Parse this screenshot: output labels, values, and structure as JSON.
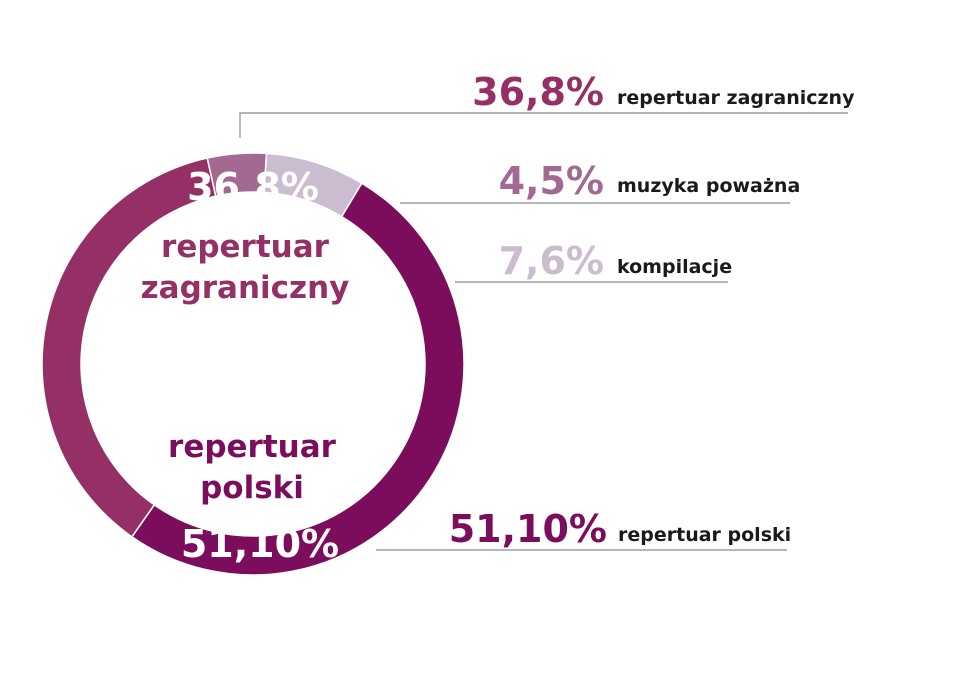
{
  "chart_data": {
    "type": "pie",
    "donut": true,
    "slices": [
      {
        "label": "repertuar zagraniczny",
        "value_text": "36,8%",
        "value": 36.8,
        "color": "#953067"
      },
      {
        "label": "muzyka poważna",
        "value_text": "4,5%",
        "value": 4.5,
        "color": "#a26a93"
      },
      {
        "label": "kompilacje",
        "value_text": "7,6%",
        "value": 7.6,
        "color": "#ccbcd0"
      },
      {
        "label": "repertuar polski",
        "value_text": "51,10%",
        "value": 51.1,
        "color": "#7c0d5d"
      }
    ],
    "inner_labels": {
      "zagraniczny_line1": "repertuar",
      "zagraniczny_line2": "zagraniczny",
      "polski_line1": "repertuar",
      "polski_line2": "polski"
    },
    "inner_label_color": "#953067",
    "polski_label_color": "#7c0d5d"
  }
}
